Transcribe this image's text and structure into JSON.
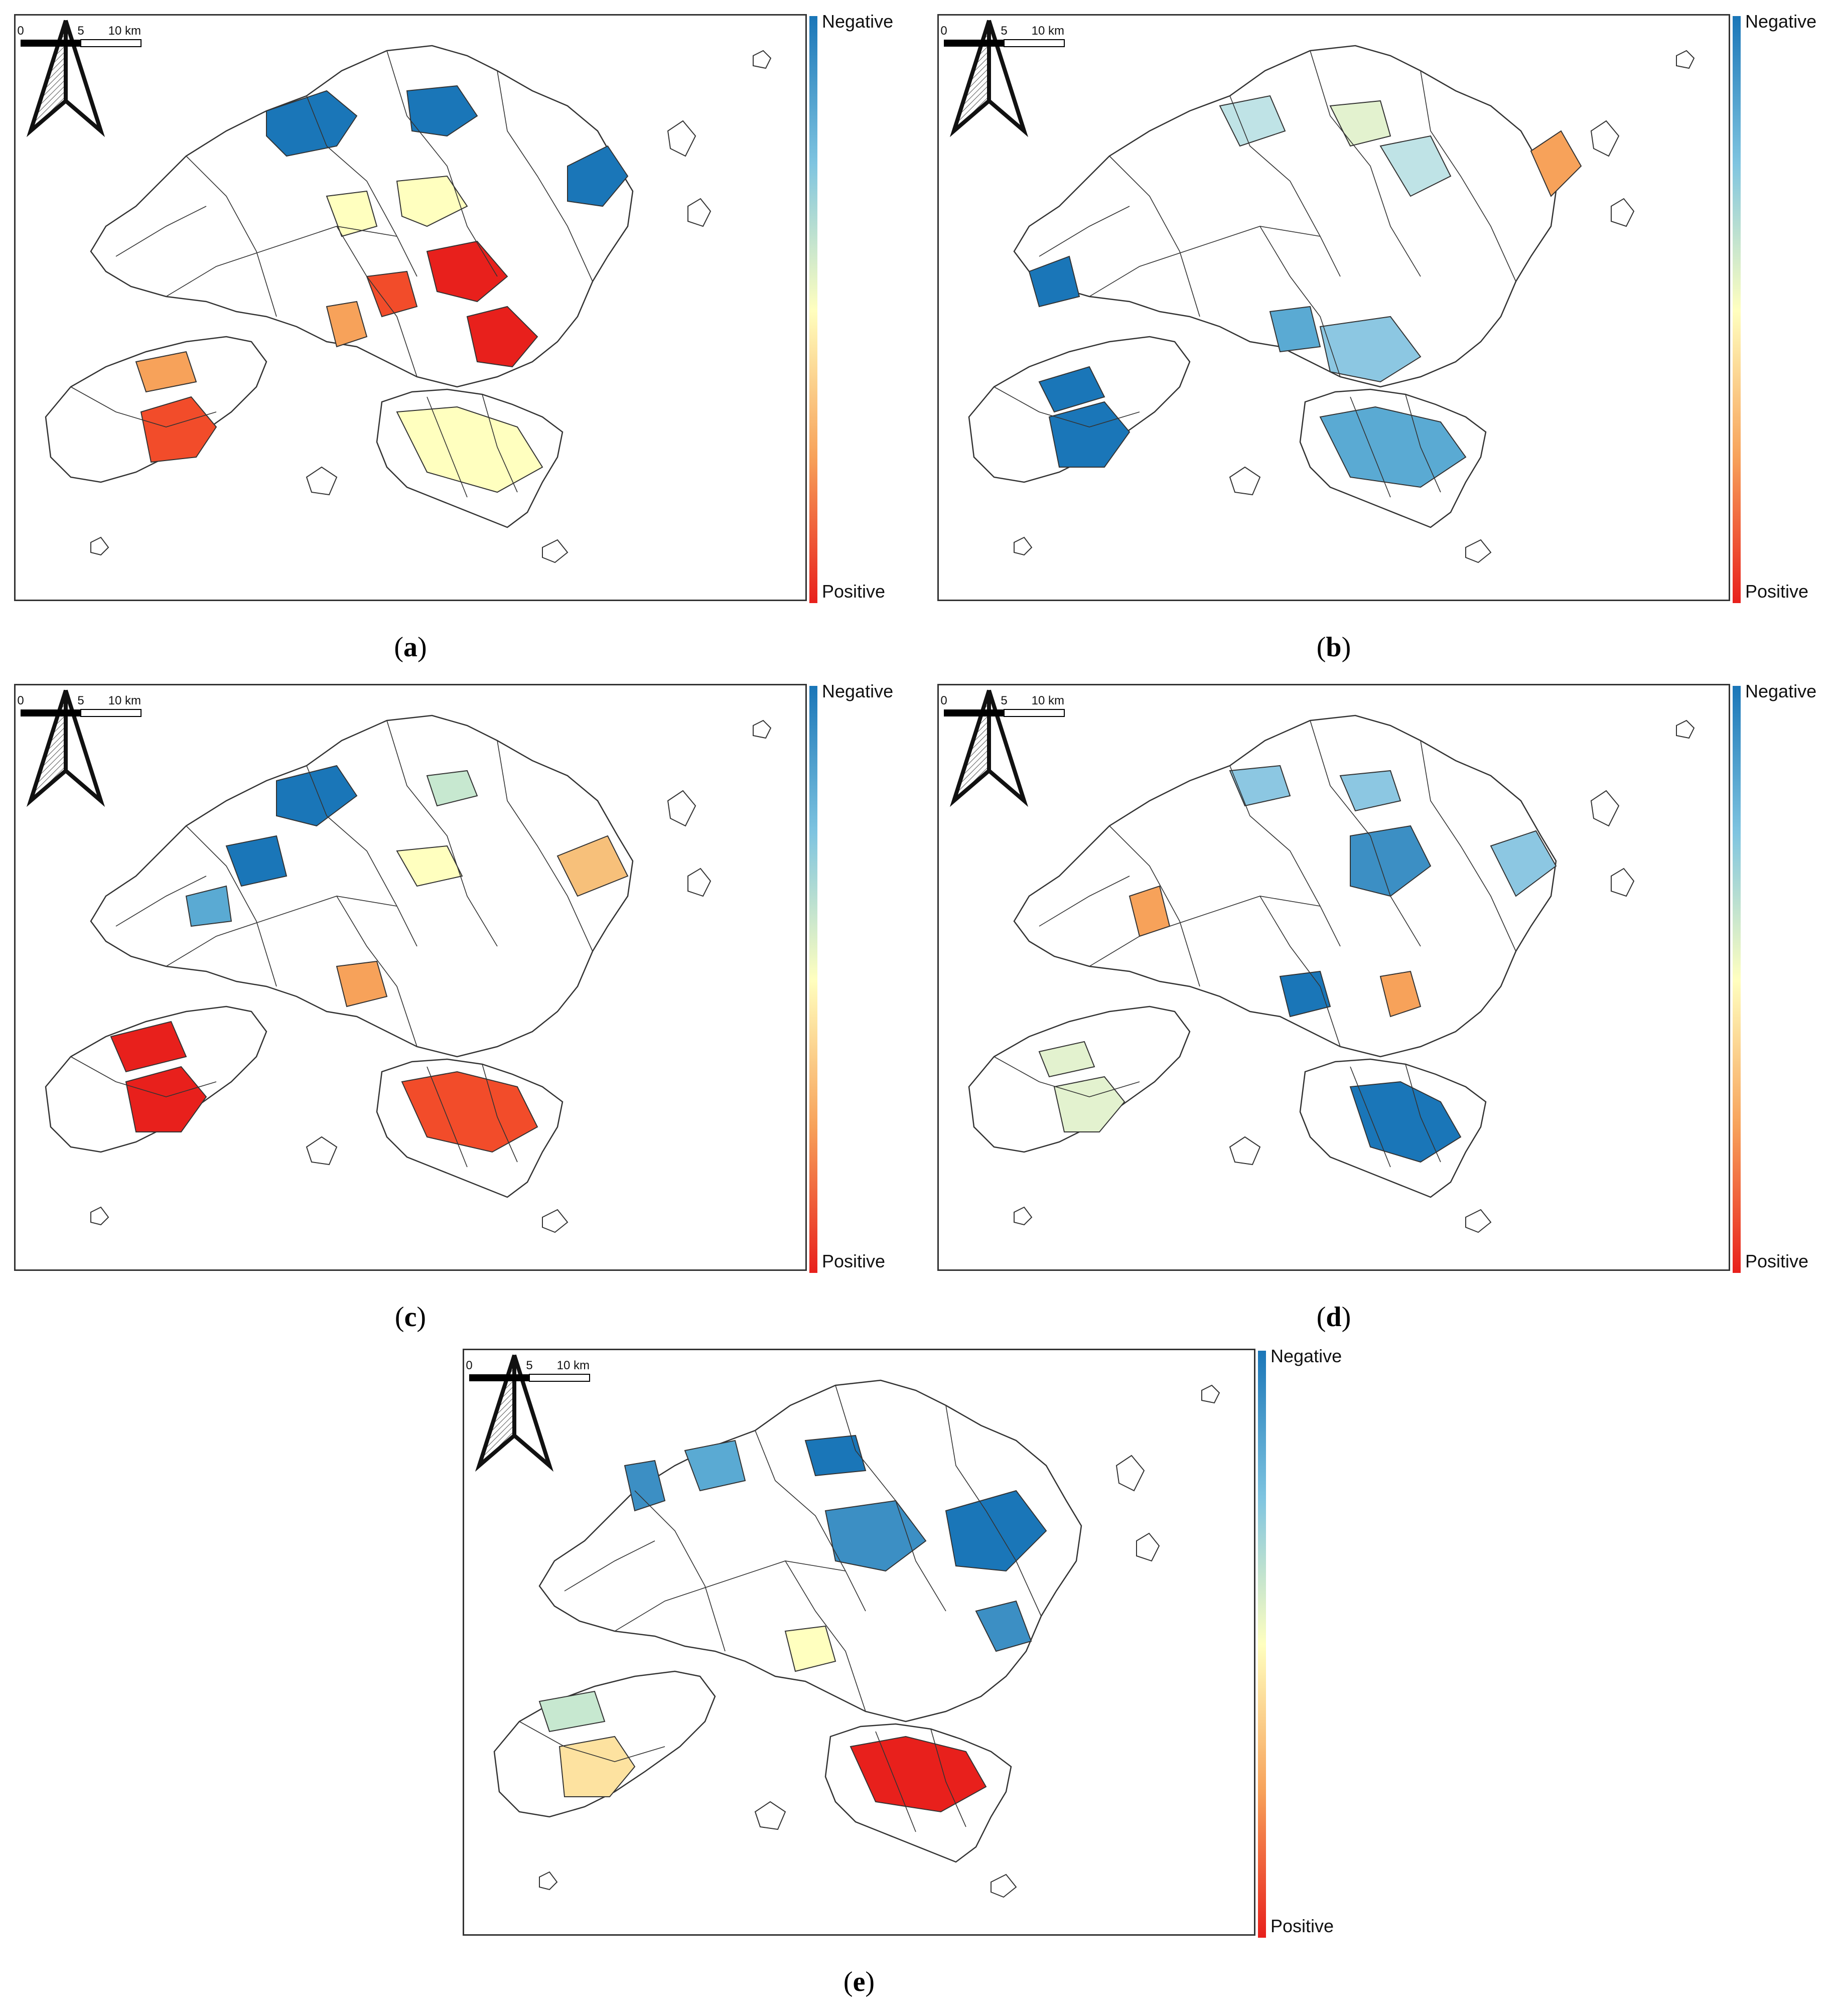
{
  "legend": {
    "negative_label": "Negative",
    "positive_label": "Positive"
  },
  "scalebar": {
    "ticks": [
      "0",
      "5",
      "10 km"
    ]
  },
  "panels": [
    {
      "id": "a",
      "letter": "a"
    },
    {
      "id": "b",
      "letter": "b"
    },
    {
      "id": "c",
      "letter": "c"
    },
    {
      "id": "d",
      "letter": "d"
    },
    {
      "id": "e",
      "letter": "e"
    }
  ],
  "colors": {
    "negative": "#1a76b8",
    "positive": "#e8201c",
    "neutral": "#ffffbf",
    "border": "#333333"
  },
  "icons": {
    "north_arrow": "north-arrow-icon"
  }
}
